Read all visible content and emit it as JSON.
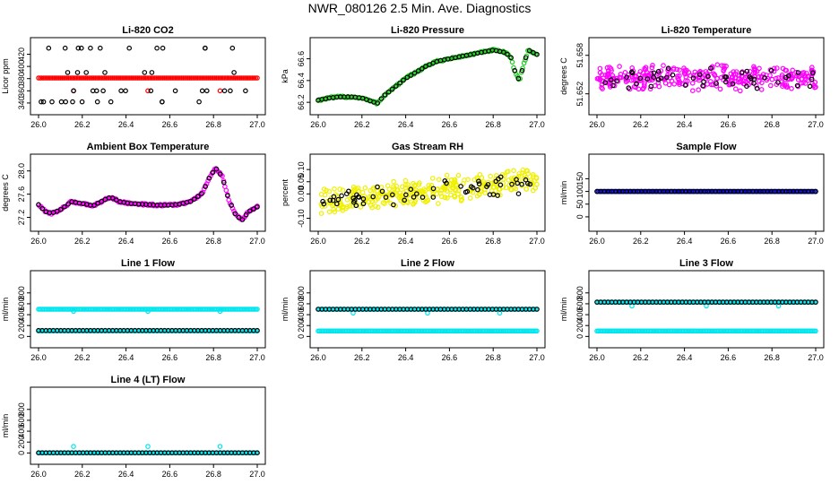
{
  "figure_title": "NWR_080126  2.5 Min. Ave. Diagnostics",
  "colors": {
    "black": "#000000",
    "red": "#ff0000",
    "green": "#22cc22",
    "magenta": "#ff00ff",
    "yellow": "#f0f000",
    "blue": "#0000cc",
    "cyan": "#00e5ee"
  },
  "chart_data": [
    {
      "id": "li820-co2",
      "type": "scatter",
      "title": "Li-820 CO2",
      "xlabel": "",
      "ylabel": "Licor ppm",
      "xlim": [
        26.0,
        27.0
      ],
      "ylim": [
        334,
        434
      ],
      "xticks": [
        26.0,
        26.2,
        26.4,
        26.6,
        26.8,
        27.0
      ],
      "xtick_labels": [
        "26.0",
        "26.2",
        "26.4",
        "26.6",
        "26.8",
        "27.0"
      ],
      "yticks": [
        340,
        360,
        380,
        400,
        420
      ],
      "ytick_labels": [
        "340",
        "360",
        "380",
        "400",
        "420"
      ],
      "series": [
        {
          "name": "continuous",
          "color": "red",
          "pattern": "line",
          "value": 381,
          "n": 140
        },
        {
          "name": "calibration-dips",
          "color": "red",
          "pattern": "points",
          "x": [
            26.16,
            26.5,
            26.83
          ],
          "y": [
            360,
            360,
            360
          ]
        },
        {
          "name": "samples",
          "color": "black",
          "pattern": "levels",
          "levels": [
            342,
            360,
            390,
            430
          ],
          "n": 44
        }
      ]
    },
    {
      "id": "li820-pressure",
      "type": "scatter",
      "title": "Li-820 Pressure",
      "xlabel": "",
      "ylabel": "kPa",
      "xlim": [
        26.0,
        27.0
      ],
      "ylim": [
        66.16,
        66.72
      ],
      "xticks": [
        26.0,
        26.2,
        26.4,
        26.6,
        26.8,
        27.0
      ],
      "xtick_labels": [
        "26.0",
        "26.2",
        "26.4",
        "26.6",
        "26.8",
        "27.0"
      ],
      "yticks": [
        66.2,
        66.4,
        66.6
      ],
      "ytick_labels": [
        "66.2",
        "66.4",
        "66.6"
      ],
      "series": [
        {
          "name": "continuous",
          "color": "green",
          "pattern": "curve",
          "n": 170,
          "x": [
            26.0,
            26.05,
            26.1,
            26.15,
            26.2,
            26.27,
            26.3,
            26.35,
            26.4,
            26.45,
            26.5,
            26.55,
            26.6,
            26.65,
            26.7,
            26.75,
            26.8,
            26.85,
            26.88,
            26.9,
            26.92,
            26.94,
            26.96,
            26.98,
            27.0
          ],
          "y": [
            66.22,
            66.24,
            66.25,
            66.25,
            66.24,
            66.19,
            66.26,
            66.34,
            66.42,
            66.48,
            66.54,
            66.58,
            66.6,
            66.62,
            66.64,
            66.66,
            66.68,
            66.66,
            66.62,
            66.48,
            66.4,
            66.55,
            66.68,
            66.66,
            66.64
          ]
        },
        {
          "name": "samples",
          "color": "black",
          "pattern": "on-curve",
          "n": 60
        }
      ]
    },
    {
      "id": "li820-temperature",
      "type": "scatter",
      "title": "Li-820 Temperature",
      "xlabel": "",
      "ylabel": "degrees C",
      "xlim": [
        26.0,
        27.0
      ],
      "ylim": [
        51.65,
        51.6595
      ],
      "xticks": [
        26.0,
        26.2,
        26.4,
        26.6,
        26.8,
        27.0
      ],
      "xtick_labels": [
        "26.0",
        "26.2",
        "26.4",
        "26.6",
        "26.8",
        "27.0"
      ],
      "yticks": [
        51.652,
        51.658
      ],
      "ytick_labels": [
        "51.652",
        "51.658"
      ],
      "series": [
        {
          "name": "continuous",
          "color": "magenta",
          "pattern": "noise",
          "center": 51.6545,
          "spread": 0.0022,
          "n": 330
        },
        {
          "name": "samples",
          "color": "black",
          "pattern": "noise",
          "center": 51.6545,
          "spread": 0.0018,
          "n": 50
        }
      ]
    },
    {
      "id": "ambient-box-temperature",
      "type": "scatter",
      "title": "Ambient Box Temperature",
      "xlabel": "",
      "ylabel": "degrees C",
      "xlim": [
        26.0,
        27.0
      ],
      "ylim": [
        27.1,
        28.15
      ],
      "xticks": [
        26.0,
        26.2,
        26.4,
        26.6,
        26.8,
        27.0
      ],
      "xtick_labels": [
        "26.0",
        "26.2",
        "26.4",
        "26.6",
        "26.8",
        "27.0"
      ],
      "yticks": [
        27.2,
        27.6,
        28.0
      ],
      "ytick_labels": [
        "27.2",
        "27.6",
        "28.0"
      ],
      "series": [
        {
          "name": "continuous",
          "color": "magenta",
          "pattern": "curve",
          "n": 170,
          "x": [
            26.0,
            26.03,
            26.06,
            26.1,
            26.15,
            26.2,
            26.25,
            26.3,
            26.33,
            26.37,
            26.42,
            26.5,
            26.55,
            26.6,
            26.65,
            26.7,
            26.75,
            26.78,
            26.81,
            26.84,
            26.87,
            26.9,
            26.93,
            26.96,
            27.0
          ],
          "y": [
            27.42,
            27.3,
            27.27,
            27.33,
            27.47,
            27.44,
            27.4,
            27.5,
            27.55,
            27.47,
            27.44,
            27.42,
            27.41,
            27.41,
            27.43,
            27.48,
            27.62,
            27.88,
            28.05,
            27.9,
            27.5,
            27.25,
            27.15,
            27.3,
            27.38
          ]
        },
        {
          "name": "samples",
          "color": "black",
          "pattern": "on-curve",
          "n": 60
        }
      ]
    },
    {
      "id": "gas-stream-rh",
      "type": "scatter",
      "title": "Gas Stream RH",
      "xlabel": "",
      "ylabel": "percent",
      "xlim": [
        26.0,
        27.0
      ],
      "ylim": [
        -0.12,
        0.13
      ],
      "xticks": [
        26.0,
        26.2,
        26.4,
        26.6,
        26.8,
        27.0
      ],
      "xtick_labels": [
        "26.0",
        "26.2",
        "26.4",
        "26.6",
        "26.8",
        "27.0"
      ],
      "yticks": [
        -0.1,
        0.0,
        0.05,
        0.1
      ],
      "ytick_labels": [
        "-0.10",
        "0.00",
        "0.05",
        "0.10"
      ],
      "series": [
        {
          "name": "continuous",
          "color": "yellow",
          "pattern": "trend-noise",
          "start": -0.035,
          "end": 0.055,
          "spread": 0.06,
          "n": 330
        },
        {
          "name": "samples",
          "color": "black",
          "pattern": "trend-noise",
          "start": -0.035,
          "end": 0.05,
          "spread": 0.045,
          "n": 60
        }
      ]
    },
    {
      "id": "sample-flow",
      "type": "scatter",
      "title": "Sample Flow",
      "xlabel": "",
      "ylabel": "ml/min",
      "xlim": [
        26.0,
        27.0
      ],
      "ylim": [
        -25,
        215
      ],
      "xticks": [
        26.0,
        26.2,
        26.4,
        26.6,
        26.8,
        27.0
      ],
      "xtick_labels": [
        "26.0",
        "26.2",
        "26.4",
        "26.6",
        "26.8",
        "27.0"
      ],
      "yticks": [
        0,
        50,
        100,
        150
      ],
      "ytick_labels": [
        "0",
        "50",
        "100",
        "150"
      ],
      "series": [
        {
          "name": "continuous",
          "color": "blue",
          "pattern": "line",
          "value": 100,
          "n": 170
        },
        {
          "name": "samples",
          "color": "black",
          "pattern": "line",
          "value": 100,
          "n": 60
        }
      ]
    },
    {
      "id": "line-1-flow",
      "type": "scatter",
      "title": "Line 1 Flow",
      "xlabel": "",
      "ylabel": "ml/min",
      "xlim": [
        26.0,
        27.0
      ],
      "ylim": [
        -60,
        1060
      ],
      "xticks": [
        26.0,
        26.2,
        26.4,
        26.6,
        26.8,
        27.0
      ],
      "xtick_labels": [
        "26.0",
        "26.2",
        "26.4",
        "26.6",
        "26.8",
        "27.0"
      ],
      "yticks": [
        0,
        200,
        400,
        600,
        800
      ],
      "ytick_labels": [
        "0",
        "200",
        "400",
        "600",
        "800"
      ],
      "series": [
        {
          "name": "continuous",
          "color": "cyan",
          "pattern": "line",
          "value": 500,
          "n": 170
        },
        {
          "name": "continuous-low",
          "color": "cyan",
          "pattern": "line",
          "value": 100,
          "n": 170
        },
        {
          "name": "calibration-dips",
          "color": "cyan",
          "pattern": "points",
          "x": [
            26.16,
            26.5,
            26.83
          ],
          "y": [
            460,
            460,
            460
          ]
        },
        {
          "name": "samples",
          "color": "black",
          "pattern": "line",
          "value": 110,
          "n": 60
        }
      ]
    },
    {
      "id": "line-2-flow",
      "type": "scatter",
      "title": "Line 2 Flow",
      "xlabel": "",
      "ylabel": "ml/min",
      "xlim": [
        26.0,
        27.0
      ],
      "ylim": [
        -60,
        1060
      ],
      "xticks": [
        26.0,
        26.2,
        26.4,
        26.6,
        26.8,
        27.0
      ],
      "xtick_labels": [
        "26.0",
        "26.2",
        "26.4",
        "26.6",
        "26.8",
        "27.0"
      ],
      "yticks": [
        0,
        200,
        400,
        600,
        800
      ],
      "ytick_labels": [
        "0",
        "200",
        "400",
        "600",
        "800"
      ],
      "series": [
        {
          "name": "continuous",
          "color": "cyan",
          "pattern": "line",
          "value": 500,
          "n": 170
        },
        {
          "name": "continuous-low",
          "color": "cyan",
          "pattern": "line",
          "value": 100,
          "n": 170
        },
        {
          "name": "calibration-dips",
          "color": "cyan",
          "pattern": "points",
          "x": [
            26.16,
            26.5,
            26.83
          ],
          "y": [
            430,
            430,
            430
          ]
        },
        {
          "name": "samples",
          "color": "black",
          "pattern": "line",
          "value": 500,
          "n": 60
        }
      ]
    },
    {
      "id": "line-3-flow",
      "type": "scatter",
      "title": "Line 3 Flow",
      "xlabel": "",
      "ylabel": "ml/min",
      "xlim": [
        26.0,
        27.0
      ],
      "ylim": [
        -60,
        1060
      ],
      "xticks": [
        26.0,
        26.2,
        26.4,
        26.6,
        26.8,
        27.0
      ],
      "xtick_labels": [
        "26.0",
        "26.2",
        "26.4",
        "26.6",
        "26.8",
        "27.0"
      ],
      "yticks": [
        0,
        200,
        400,
        600,
        800
      ],
      "ytick_labels": [
        "0",
        "200",
        "400",
        "600",
        "800"
      ],
      "series": [
        {
          "name": "continuous",
          "color": "cyan",
          "pattern": "line",
          "value": 630,
          "n": 170
        },
        {
          "name": "continuous-low",
          "color": "cyan",
          "pattern": "line",
          "value": 100,
          "n": 170
        },
        {
          "name": "calibration-dips",
          "color": "cyan",
          "pattern": "points",
          "x": [
            26.16,
            26.5,
            26.83
          ],
          "y": [
            560,
            560,
            560
          ]
        },
        {
          "name": "samples",
          "color": "black",
          "pattern": "line",
          "value": 630,
          "n": 60
        }
      ]
    },
    {
      "id": "line-4-lt-flow",
      "type": "scatter",
      "title": "Line 4 (LT) Flow",
      "xlabel": "",
      "ylabel": "ml/min",
      "xlim": [
        26.0,
        27.0
      ],
      "ylim": [
        -60,
        1060
      ],
      "xticks": [
        26.0,
        26.2,
        26.4,
        26.6,
        26.8,
        27.0
      ],
      "xtick_labels": [
        "26.0",
        "26.2",
        "26.4",
        "26.6",
        "26.8",
        "27.0"
      ],
      "yticks": [
        0,
        200,
        400,
        600,
        800
      ],
      "ytick_labels": [
        "0",
        "200",
        "400",
        "600",
        "800"
      ],
      "series": [
        {
          "name": "continuous",
          "color": "cyan",
          "pattern": "line",
          "value": 3,
          "n": 170
        },
        {
          "name": "calibration-peaks",
          "color": "cyan",
          "pattern": "points",
          "x": [
            26.16,
            26.5,
            26.83
          ],
          "y": [
            120,
            120,
            120
          ]
        },
        {
          "name": "samples",
          "color": "black",
          "pattern": "line",
          "value": 3,
          "n": 60
        }
      ]
    }
  ]
}
